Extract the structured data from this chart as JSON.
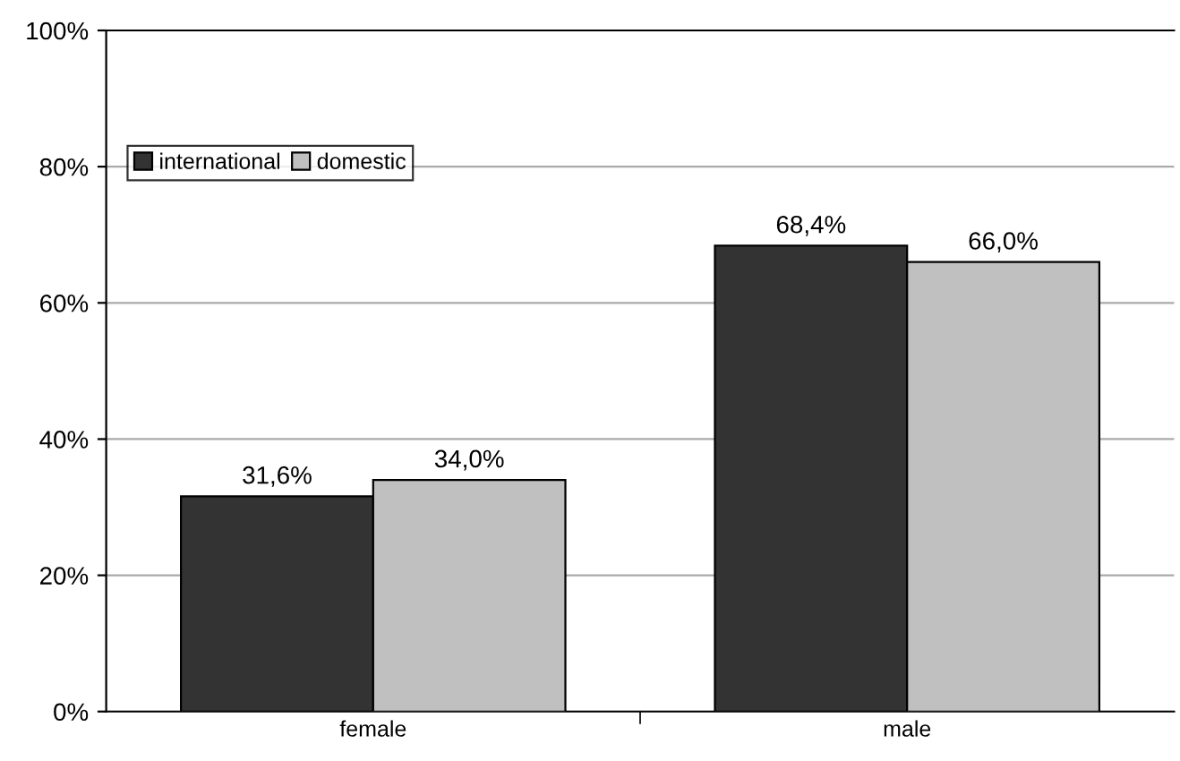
{
  "chart_data": {
    "type": "bar",
    "categories": [
      "female",
      "male"
    ],
    "series": [
      {
        "name": "international",
        "color": "#333333",
        "values": [
          31.6,
          68.4
        ],
        "value_labels": [
          "31,6%",
          "68,4%"
        ]
      },
      {
        "name": "domestic",
        "color": "#c0c0c0",
        "values": [
          34.0,
          66.0
        ],
        "value_labels": [
          "34,0%",
          "66,0%"
        ]
      }
    ],
    "ylim": [
      0,
      100
    ],
    "yticks": [
      {
        "value": 0,
        "label": "0%"
      },
      {
        "value": 20,
        "label": "20%"
      },
      {
        "value": 40,
        "label": "40%"
      },
      {
        "value": 60,
        "label": "60%"
      },
      {
        "value": 80,
        "label": "80%"
      },
      {
        "value": 100,
        "label": "100%"
      }
    ],
    "grid": "y",
    "legend": "top left"
  }
}
